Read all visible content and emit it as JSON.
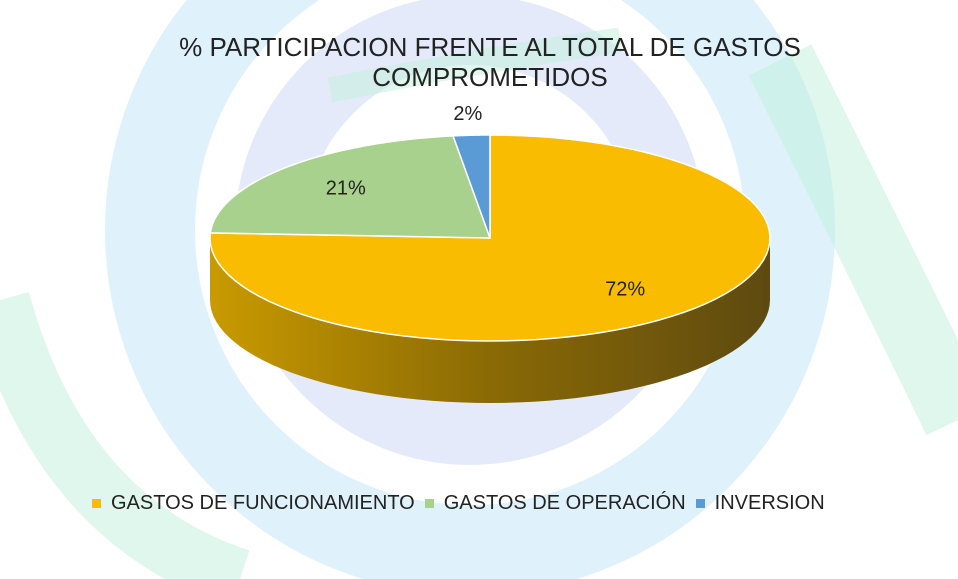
{
  "chart_data": {
    "type": "pie",
    "title": "% PARTICIPACION FRENTE AL TOTAL DE GASTOS COMPROMETIDOS",
    "categories": [
      "GASTOS DE FUNCIONAMIENTO",
      "GASTOS DE OPERACIÓN",
      "INVERSION"
    ],
    "values": [
      72,
      21,
      2
    ],
    "value_labels": [
      "72%",
      "21%",
      "2%"
    ],
    "colors": [
      "#f9bc00",
      "#a9d18e",
      "#5b9bd5"
    ],
    "legend": "bottom"
  }
}
